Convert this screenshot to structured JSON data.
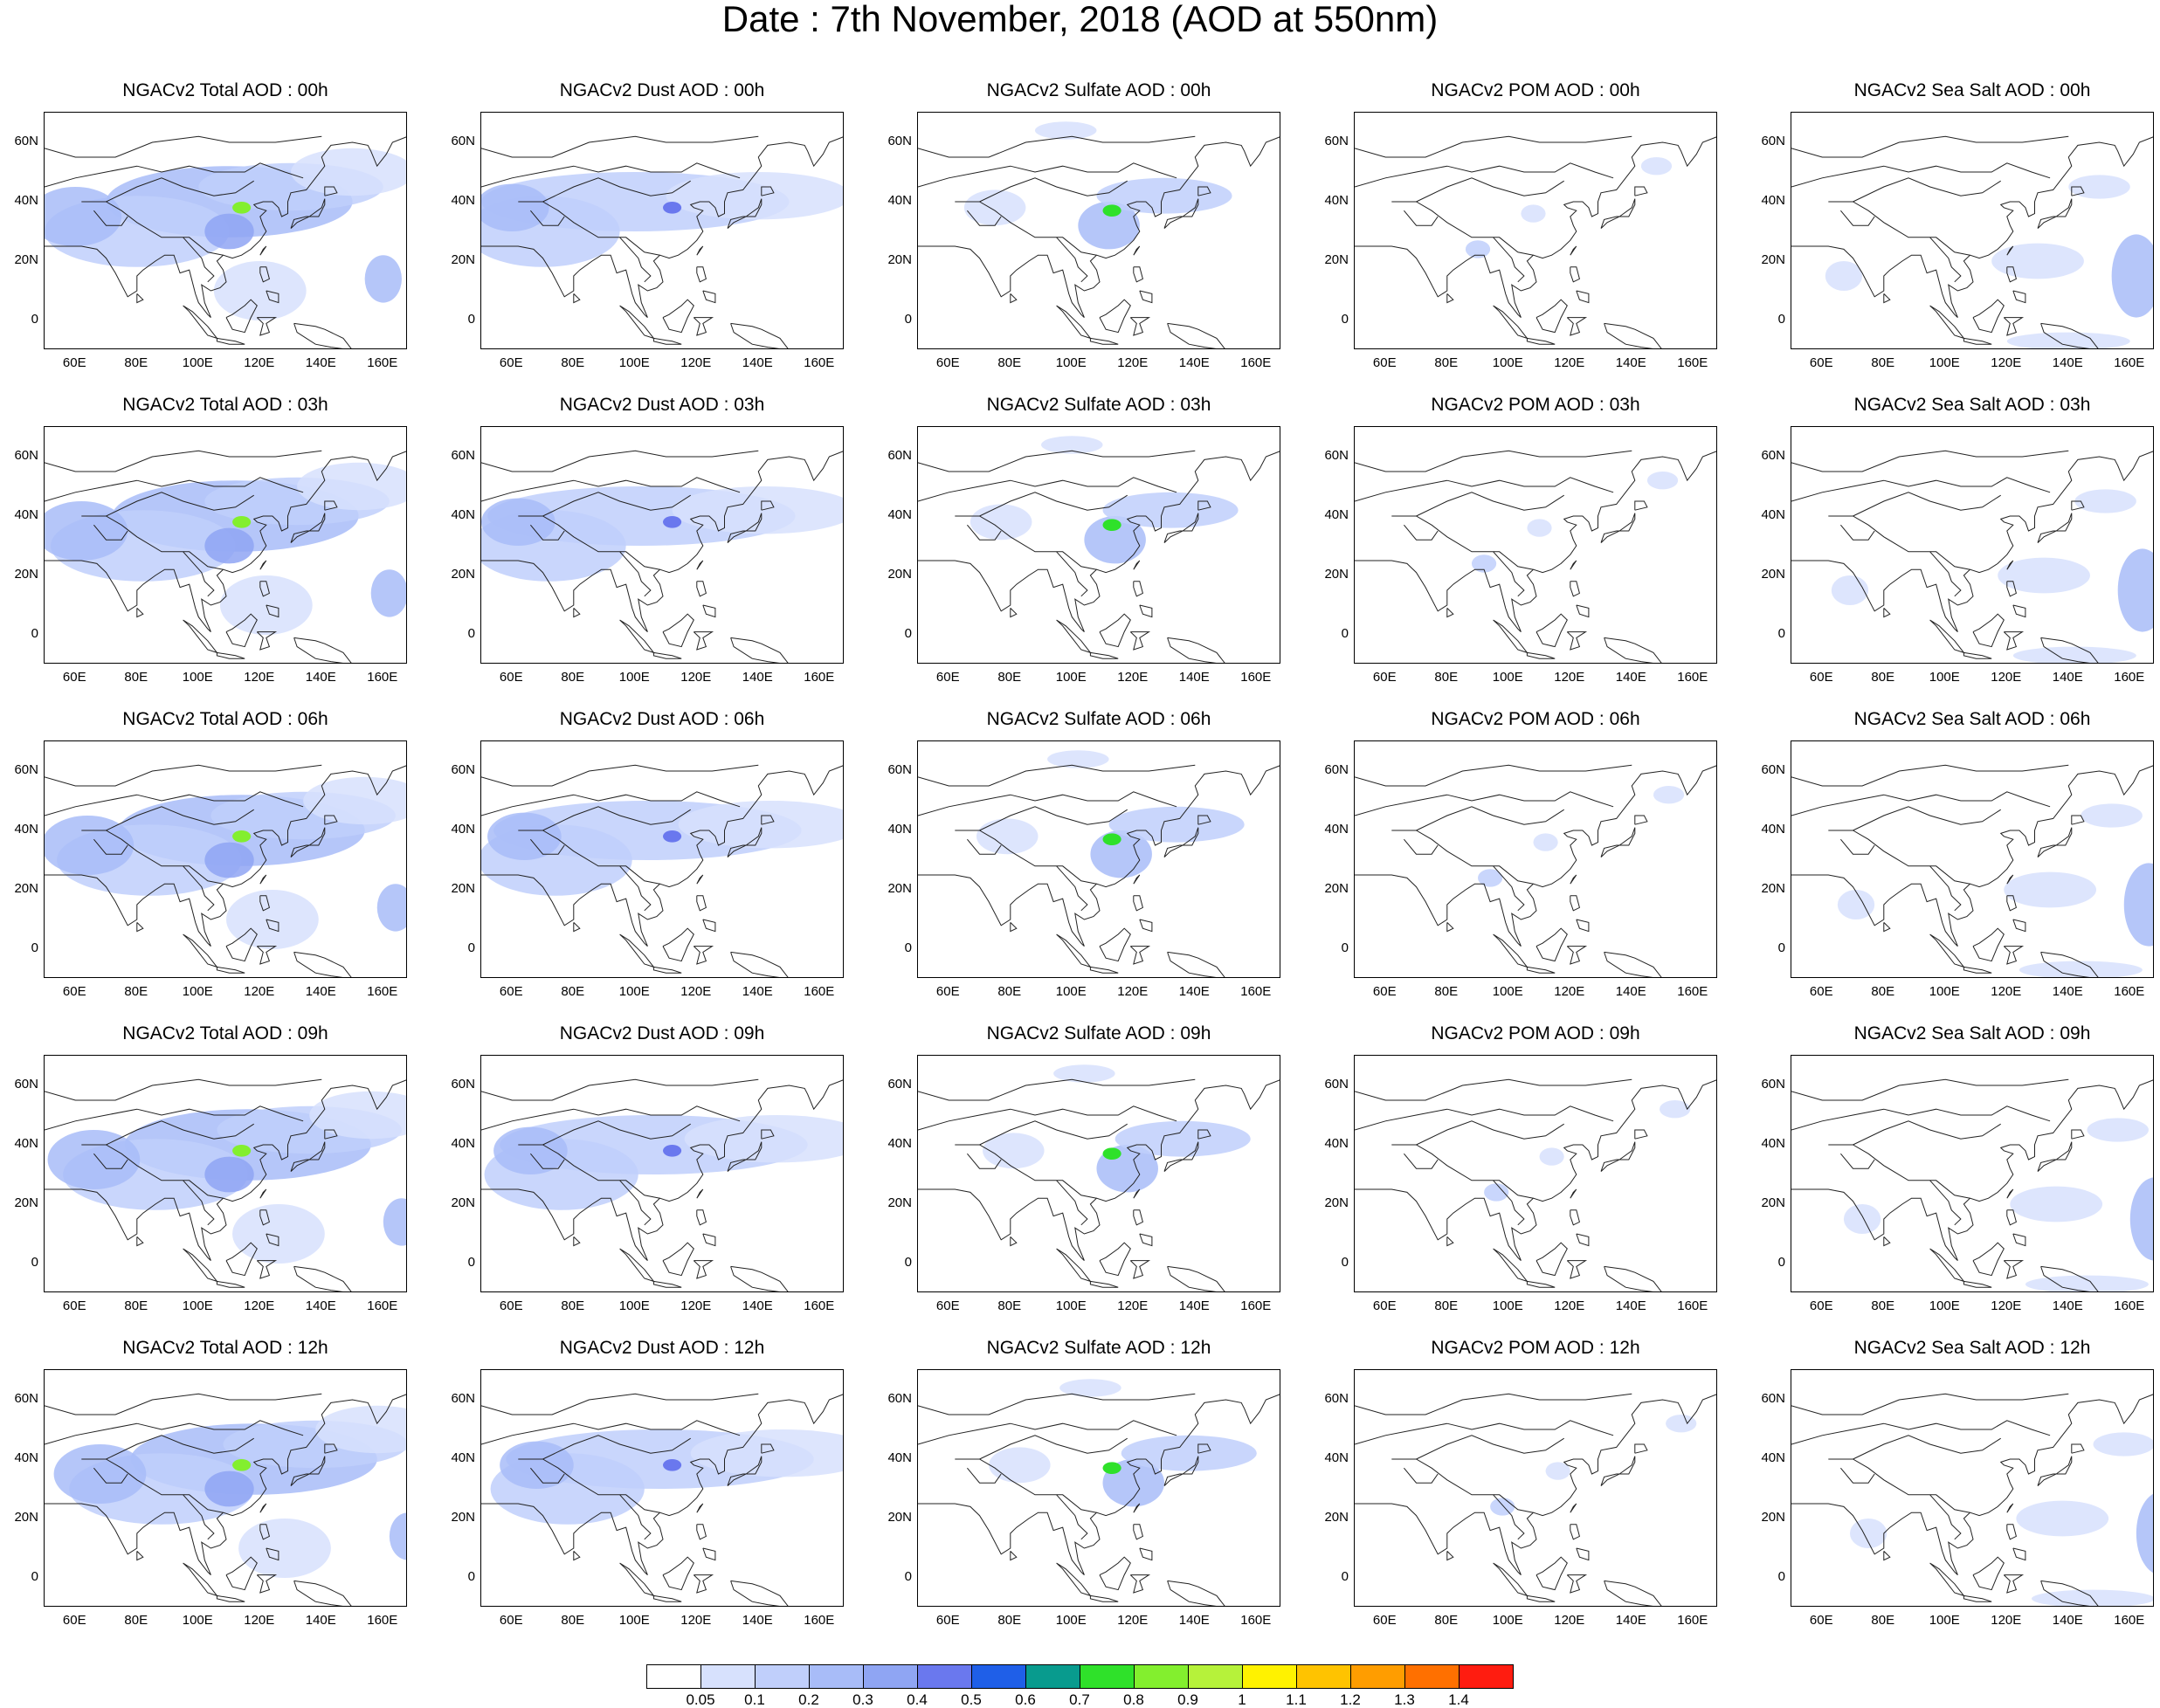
{
  "title": "Date : 7th November, 2018 (AOD at 550nm)",
  "panel_titles": [
    [
      "NGACv2 Total AOD : 00h",
      "NGACv2 Dust AOD : 00h",
      "NGACv2 Sulfate AOD : 00h",
      "NGACv2 POM AOD : 00h",
      "NGACv2 Sea Salt AOD : 00h"
    ],
    [
      "NGACv2 Total AOD : 03h",
      "NGACv2 Dust AOD : 03h",
      "NGACv2 Sulfate AOD : 03h",
      "NGACv2 POM AOD : 03h",
      "NGACv2 Sea Salt AOD : 03h"
    ],
    [
      "NGACv2 Total AOD : 06h",
      "NGACv2 Dust AOD : 06h",
      "NGACv2 Sulfate AOD : 06h",
      "NGACv2 POM AOD : 06h",
      "NGACv2 Sea Salt AOD : 06h"
    ],
    [
      "NGACv2 Total AOD : 09h",
      "NGACv2 Dust AOD : 09h",
      "NGACv2 Sulfate AOD : 09h",
      "NGACv2 POM AOD : 09h",
      "NGACv2 Sea Salt  AOD : 09h"
    ],
    [
      "NGACv2 Total AOD  : 12h",
      "NGACv2 Dust AOD : 12h",
      "NGACv2 Sulfate AOD : 12h",
      "NGACv2 POM  AOD : 12h",
      "NGACv2 Sea Salt  AOD : 12h"
    ]
  ],
  "y_ticks": [
    "60N",
    "40N",
    "20N",
    "0"
  ],
  "x_ticks": [
    "60E",
    "80E",
    "100E",
    "120E",
    "140E",
    "160E"
  ],
  "colorbar": {
    "labels": [
      "0.05",
      "0.1",
      "0.2",
      "0.3",
      "0.4",
      "0.5",
      "0.6",
      "0.7",
      "0.8",
      "0.9",
      "1",
      "1.1",
      "1.2",
      "1.3",
      "1.4"
    ],
    "colors": [
      "#ffffff",
      "#d7e1fd",
      "#c0cffb",
      "#a8bcf8",
      "#8fa5f3",
      "#6a78ee",
      "#1f5fe8",
      "#089b8e",
      "#2fe12a",
      "#83ef2e",
      "#b6f23a",
      "#fff200",
      "#ffc300",
      "#ff9d00",
      "#ff7000",
      "#ff1c10"
    ]
  },
  "map_extent": {
    "lon_min": 50,
    "lon_max": 168,
    "lat_min": -10,
    "lat_max": 70
  },
  "aod_plumes": {
    "total": [
      {
        "lon": 110,
        "lat": 40,
        "rlon": 40,
        "rlat": 12,
        "level": 3
      },
      {
        "lon": 130,
        "lat": 45,
        "rlon": 30,
        "rlat": 8,
        "level": 2
      },
      {
        "lon": 80,
        "lat": 30,
        "rlon": 30,
        "rlat": 12,
        "level": 2
      },
      {
        "lon": 60,
        "lat": 35,
        "rlon": 15,
        "rlat": 10,
        "level": 3
      },
      {
        "lon": 150,
        "lat": 50,
        "rlon": 20,
        "rlat": 8,
        "level": 1
      },
      {
        "lon": 160,
        "lat": 14,
        "rlon": 6,
        "rlat": 8,
        "level": 3
      },
      {
        "lon": 110,
        "lat": 30,
        "rlon": 8,
        "rlat": 6,
        "level": 4
      },
      {
        "lon": 114,
        "lat": 38,
        "rlon": 3,
        "rlat": 2,
        "level": 9
      },
      {
        "lon": 120,
        "lat": 10,
        "rlon": 15,
        "rlat": 10,
        "level": 1
      }
    ],
    "dust": [
      {
        "lon": 100,
        "lat": 40,
        "rlon": 50,
        "rlat": 10,
        "level": 2
      },
      {
        "lon": 70,
        "lat": 30,
        "rlon": 25,
        "rlat": 12,
        "level": 2
      },
      {
        "lon": 140,
        "lat": 42,
        "rlon": 30,
        "rlat": 8,
        "level": 1
      },
      {
        "lon": 60,
        "lat": 38,
        "rlon": 12,
        "rlat": 8,
        "level": 3
      },
      {
        "lon": 112,
        "lat": 38,
        "rlon": 3,
        "rlat": 2,
        "level": 5
      }
    ],
    "sulfate": [
      {
        "lon": 112,
        "lat": 32,
        "rlon": 10,
        "rlat": 8,
        "level": 3
      },
      {
        "lon": 130,
        "lat": 42,
        "rlon": 22,
        "rlat": 6,
        "level": 2
      },
      {
        "lon": 75,
        "lat": 38,
        "rlon": 10,
        "rlat": 6,
        "level": 1
      },
      {
        "lon": 98,
        "lat": 64,
        "rlon": 10,
        "rlat": 3,
        "level": 1
      },
      {
        "lon": 113,
        "lat": 37,
        "rlon": 3,
        "rlat": 2,
        "level": 8
      }
    ],
    "pom": [
      {
        "lon": 90,
        "lat": 24,
        "rlon": 4,
        "rlat": 3,
        "level": 2
      },
      {
        "lon": 108,
        "lat": 36,
        "rlon": 4,
        "rlat": 3,
        "level": 1
      },
      {
        "lon": 148,
        "lat": 52,
        "rlon": 5,
        "rlat": 3,
        "level": 1
      }
    ],
    "seasalt": [
      {
        "lon": 162,
        "lat": 15,
        "rlon": 8,
        "rlat": 14,
        "level": 3
      },
      {
        "lon": 130,
        "lat": 20,
        "rlon": 15,
        "rlat": 6,
        "level": 1
      },
      {
        "lon": 150,
        "lat": 45,
        "rlon": 10,
        "rlat": 4,
        "level": 1
      },
      {
        "lon": 67,
        "lat": 15,
        "rlon": 6,
        "rlat": 5,
        "level": 1
      },
      {
        "lon": 140,
        "lat": -7,
        "rlon": 20,
        "rlat": 3,
        "level": 1
      }
    ]
  }
}
